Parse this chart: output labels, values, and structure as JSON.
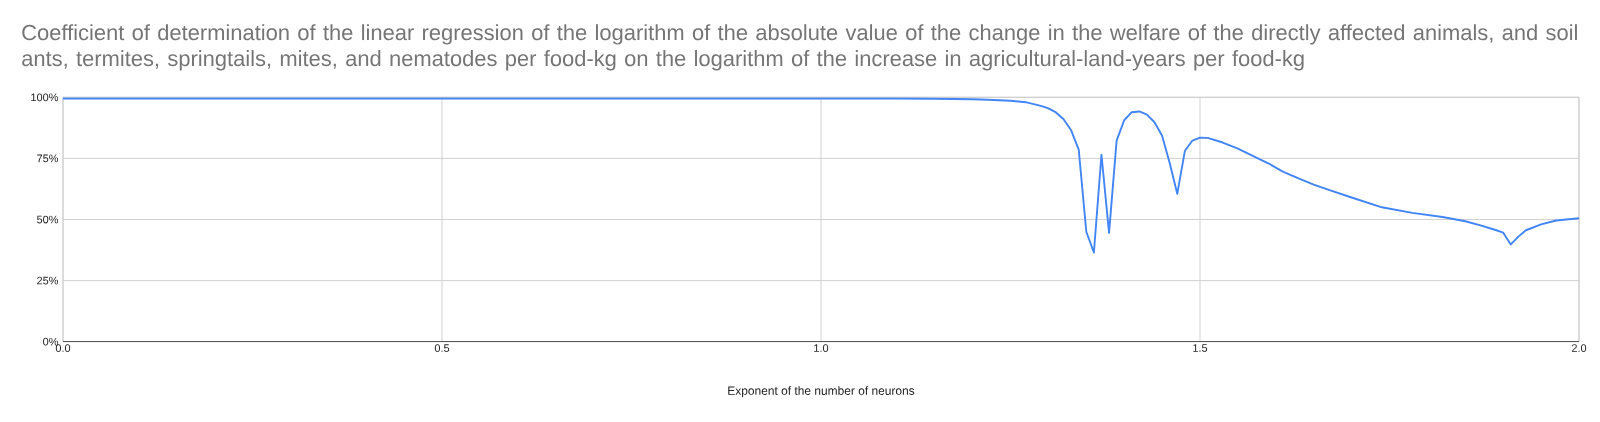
{
  "chart_data": {
    "type": "line",
    "title": "Coefficient of determination of the linear regression of the logarithm of the absolute value of the change in the welfare of the directly affected animals, and soil ants, termites, springtails, mites, and nematodes per food-kg on the logarithm of the increase in agricultural-land-years per food-kg",
    "xlabel": "Exponent of the number of neurons",
    "xlim": [
      0,
      2
    ],
    "xticks": [
      {
        "value": 0,
        "label": "0.0"
      },
      {
        "value": 0.5,
        "label": "0.5"
      },
      {
        "value": 1,
        "label": "1.0"
      },
      {
        "value": 1.5,
        "label": "1.5"
      },
      {
        "value": 2,
        "label": "2.0"
      }
    ],
    "ylim": [
      0,
      100
    ],
    "yticks": [
      {
        "value": 0,
        "label": "0%"
      },
      {
        "value": 25,
        "label": "25%"
      },
      {
        "value": 50,
        "label": "50%"
      },
      {
        "value": 75,
        "label": "75%"
      },
      {
        "value": 100,
        "label": "100%"
      }
    ],
    "grid": true,
    "series": [
      {
        "color": "#4285f4",
        "x": [
          0,
          0.5,
          1.0,
          1.1,
          1.15,
          1.2,
          1.22,
          1.25,
          1.27,
          1.29,
          1.3,
          1.31,
          1.32,
          1.33,
          1.34,
          1.35,
          1.36,
          1.37,
          1.38,
          1.39,
          1.4,
          1.41,
          1.42,
          1.43,
          1.44,
          1.45,
          1.46,
          1.47,
          1.48,
          1.49,
          1.5,
          1.51,
          1.53,
          1.55,
          1.57,
          1.59,
          1.61,
          1.63,
          1.65,
          1.67,
          1.7,
          1.74,
          1.78,
          1.82,
          1.85,
          1.87,
          1.89,
          1.9,
          1.91,
          1.92,
          1.93,
          1.95,
          1.97,
          2.0
        ],
        "values": [
          99.5,
          99.5,
          99.5,
          99.5,
          99.4,
          99.2,
          99.0,
          98.6,
          98.0,
          96.5,
          95.5,
          93.8,
          91,
          86.5,
          78.6,
          45,
          36.5,
          76.5,
          44.5,
          82.3,
          90.6,
          93.9,
          94.2,
          92.9,
          89.8,
          84.3,
          73.1,
          60.5,
          78,
          82.3,
          83.5,
          83.4,
          81.5,
          79,
          76,
          73,
          69.5,
          66.8,
          64.3,
          62.1,
          59,
          55,
          52.7,
          51,
          49.3,
          47.6,
          45.7,
          44.6,
          39.8,
          43,
          45.6,
          48,
          49.6,
          50.5
        ]
      }
    ]
  }
}
